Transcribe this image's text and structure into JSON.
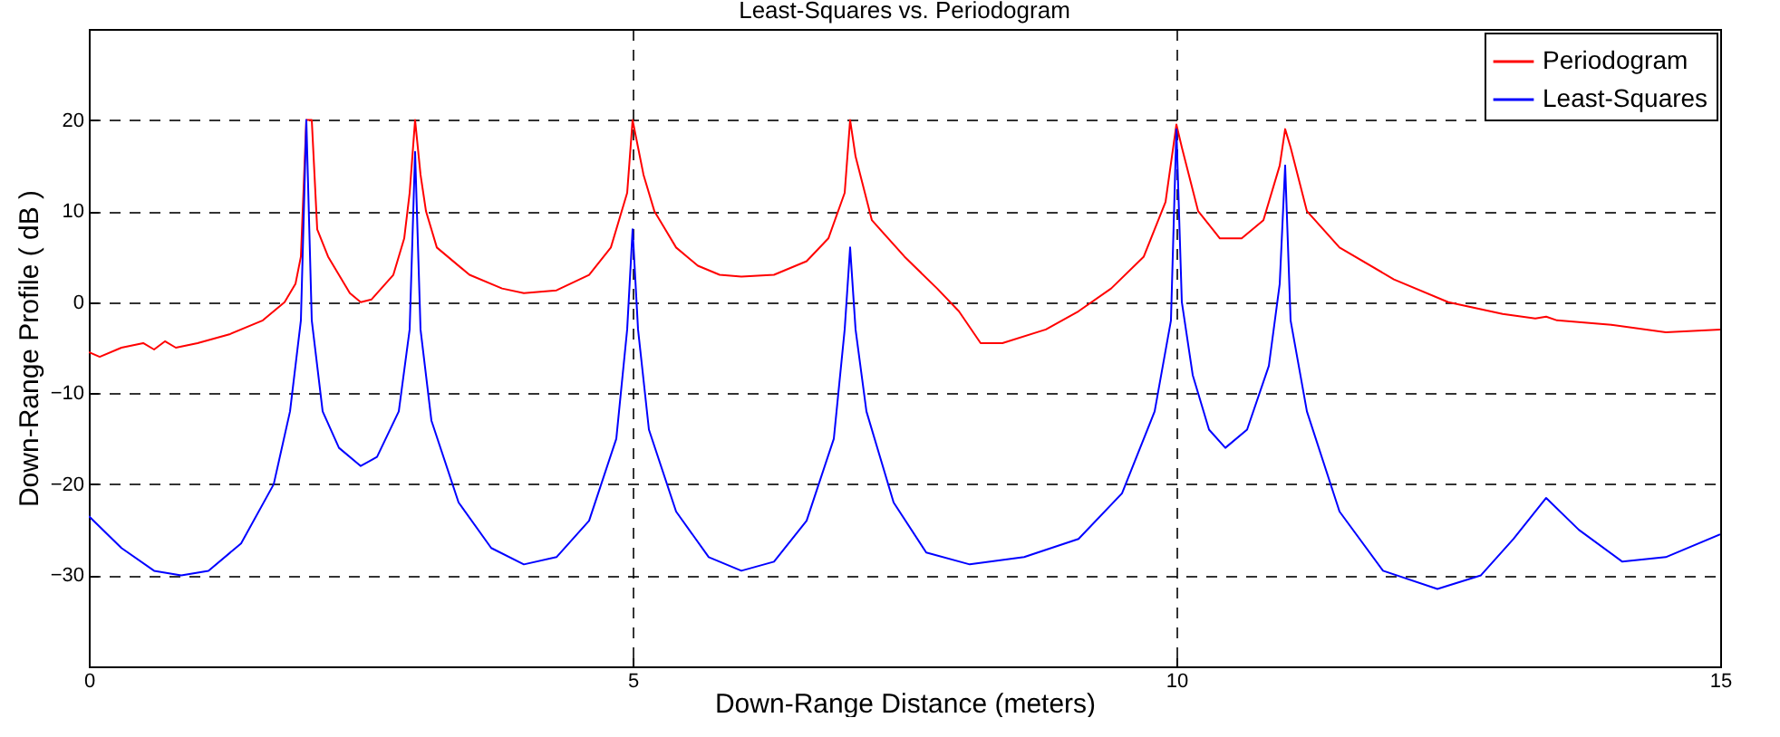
{
  "chart_data": {
    "type": "line",
    "title": "Least-Squares vs. Periodogram",
    "xlabel": "Down-Range Distance (meters)",
    "ylabel": "Down-Range Profile ( dB )",
    "xlim": [
      0,
      15
    ],
    "xticks": [
      0,
      5,
      10,
      15
    ],
    "ylim": [
      -40,
      30
    ],
    "yticks": [
      -30,
      -20,
      -10,
      0,
      10,
      20
    ],
    "grid": true,
    "legend": "top right",
    "series": [
      {
        "name": "Periodogram",
        "color": "#ff0000",
        "x": [
          0,
          0.1,
          0.3,
          0.5,
          0.6,
          0.7,
          0.8,
          1.0,
          1.3,
          1.6,
          1.8,
          1.9,
          1.95,
          2.0,
          2.05,
          2.1,
          2.2,
          2.4,
          2.5,
          2.6,
          2.8,
          2.9,
          2.95,
          3.0,
          3.05,
          3.1,
          3.2,
          3.5,
          3.8,
          4.0,
          4.3,
          4.6,
          4.8,
          4.95,
          5.0,
          5.05,
          5.1,
          5.2,
          5.4,
          5.6,
          5.8,
          6.0,
          6.3,
          6.6,
          6.8,
          6.95,
          7.0,
          7.05,
          7.2,
          7.5,
          7.8,
          8.0,
          8.2,
          8.4,
          8.8,
          9.1,
          9.4,
          9.7,
          9.9,
          10.0,
          10.05,
          10.2,
          10.4,
          10.6,
          10.8,
          10.95,
          11.0,
          11.05,
          11.2,
          11.5,
          12.0,
          12.5,
          13.0,
          13.3,
          13.4,
          13.5,
          14.0,
          14.5,
          15
        ],
        "values": [
          -5.5,
          -6,
          -5,
          -4.5,
          -5.2,
          -4.3,
          -5,
          -4.5,
          -3.5,
          -2,
          0,
          2,
          5,
          20,
          20,
          8,
          5,
          1,
          0,
          0.3,
          3,
          7,
          12,
          20,
          14,
          10,
          6,
          3,
          1.5,
          1,
          1.3,
          3,
          6,
          12,
          20,
          17,
          14,
          10,
          6,
          4,
          3,
          2.8,
          3,
          4.5,
          7,
          12,
          20,
          16,
          9,
          5,
          1.5,
          -1,
          -4.5,
          -4.5,
          -3,
          -1,
          1.5,
          5,
          11,
          19.5,
          17,
          10,
          7,
          7,
          9,
          15,
          19,
          17,
          10,
          6,
          2.5,
          0,
          -1.3,
          -1.8,
          -1.6,
          -2,
          -2.5,
          -3.3,
          -3
        ]
      },
      {
        "name": "Least-Squares",
        "color": "#0000ff",
        "x": [
          0,
          0.3,
          0.6,
          0.85,
          1.1,
          1.4,
          1.7,
          1.85,
          1.95,
          2.0,
          2.05,
          2.15,
          2.3,
          2.5,
          2.65,
          2.85,
          2.95,
          3.0,
          3.05,
          3.15,
          3.4,
          3.7,
          4.0,
          4.3,
          4.6,
          4.85,
          4.95,
          5.0,
          5.05,
          5.15,
          5.4,
          5.7,
          6.0,
          6.3,
          6.6,
          6.85,
          6.95,
          7.0,
          7.05,
          7.15,
          7.4,
          7.7,
          8.1,
          8.6,
          9.1,
          9.5,
          9.8,
          9.95,
          10.0,
          10.05,
          10.15,
          10.3,
          10.45,
          10.65,
          10.85,
          10.95,
          11.0,
          11.05,
          11.2,
          11.5,
          11.9,
          12.4,
          12.8,
          13.1,
          13.4,
          13.7,
          14.1,
          14.5,
          15
        ],
        "values": [
          -23.5,
          -27,
          -29.5,
          -30,
          -29.5,
          -26.5,
          -20,
          -12,
          -2,
          20,
          -2,
          -12,
          -16,
          -18,
          -17,
          -12,
          -3,
          16.5,
          -3,
          -13,
          -22,
          -27,
          -28.8,
          -28,
          -24,
          -15,
          -3,
          8,
          -3,
          -14,
          -23,
          -28,
          -29.5,
          -28.5,
          -24,
          -15,
          -3,
          6,
          -3,
          -12,
          -22,
          -27.5,
          -28.8,
          -28,
          -26,
          -21,
          -12,
          -2,
          19,
          0,
          -8,
          -14,
          -16,
          -14,
          -7,
          2,
          15,
          -2,
          -12,
          -23,
          -29.5,
          -31.5,
          -30,
          -26,
          -21.5,
          -25,
          -28.5,
          -28,
          -25.5
        ]
      }
    ]
  }
}
